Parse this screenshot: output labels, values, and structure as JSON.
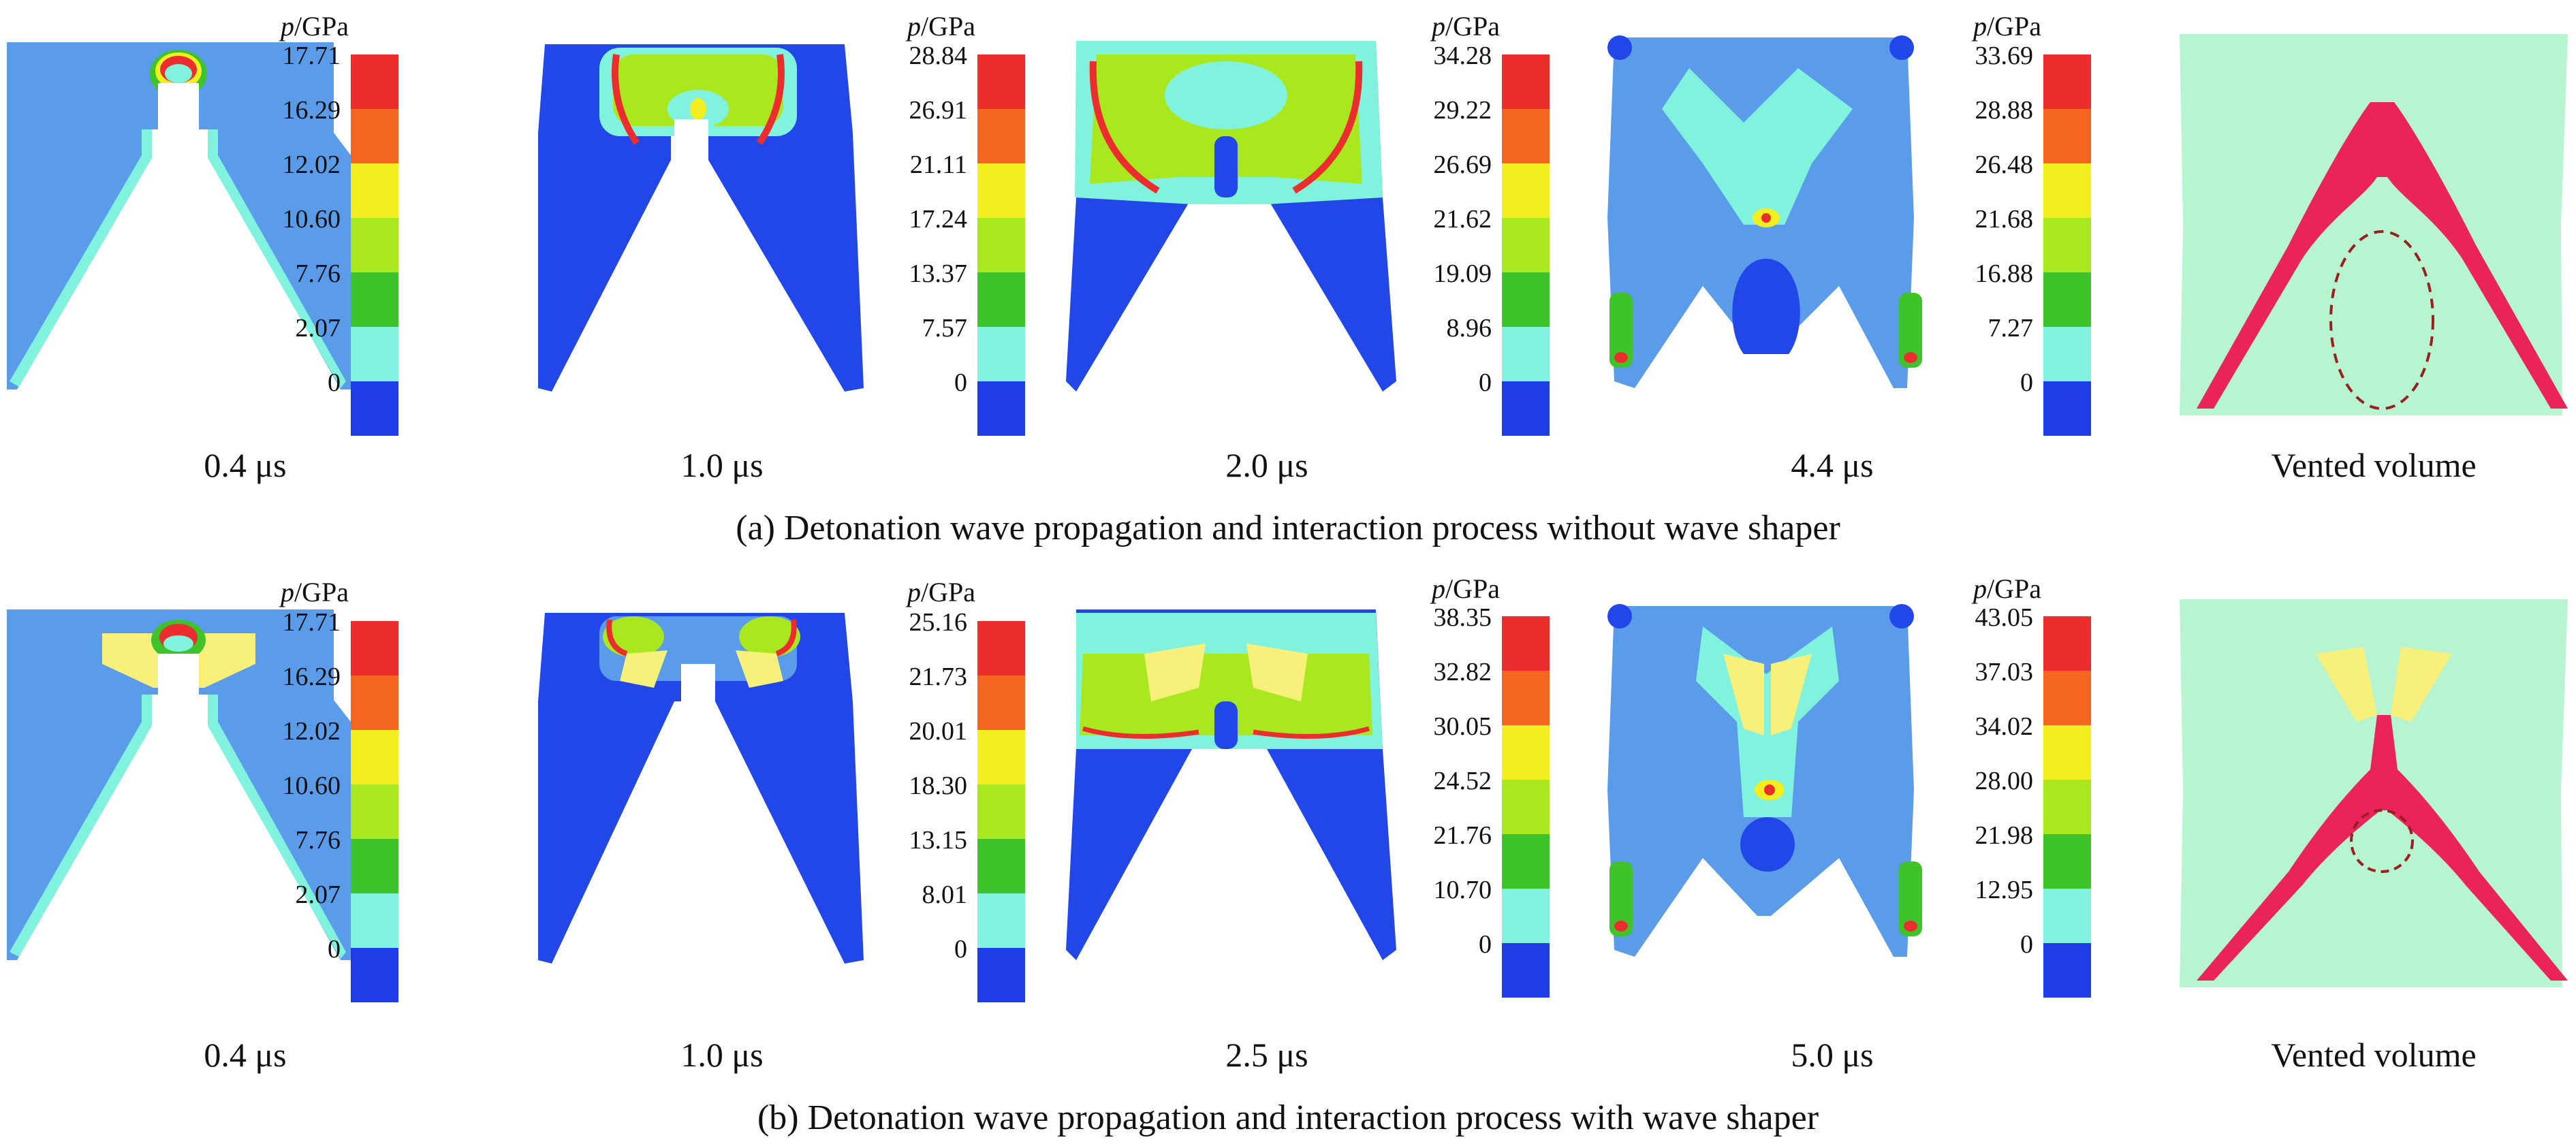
{
  "colors": {
    "level0": "#1f3de6",
    "level1": "#80f2dd",
    "level2": "#3fc32a",
    "level3": "#a9e81f",
    "level4": "#f2ee1f",
    "level5": "#f4661f",
    "level6": "#ec2d2d",
    "background_blue": "#5a9ce9",
    "dark_blue": "#2147e8",
    "vent_green": "#b6f5d0",
    "vent_red": "#ea245a",
    "vent_yellow": "#f7f07a",
    "dashed_circle": "#9b1f1f"
  },
  "unit_label": {
    "p": "p",
    "unit": "/GPa"
  },
  "rows": [
    {
      "caption": "(a) Detonation wave propagation and interaction process without wave shaper",
      "panels": [
        {
          "time": "0.4 μs",
          "scale": [
            "17.71",
            "16.29",
            "12.02",
            "10.60",
            "7.76",
            "2.07",
            "0"
          ]
        },
        {
          "time": "1.0 μs",
          "scale": [
            "28.84",
            "26.91",
            "21.11",
            "17.24",
            "13.37",
            "7.57",
            "0"
          ]
        },
        {
          "time": "2.0 μs",
          "scale": [
            "34.28",
            "29.22",
            "26.69",
            "21.62",
            "19.09",
            "8.96",
            "0"
          ]
        },
        {
          "time": "4.4 μs",
          "scale": [
            "33.69",
            "28.88",
            "26.48",
            "21.68",
            "16.88",
            "7.27",
            "0"
          ]
        }
      ],
      "vented_label": "Vented volume"
    },
    {
      "caption": "(b) Detonation wave propagation and interaction process with wave shaper",
      "panels": [
        {
          "time": "0.4 μs",
          "scale": [
            "17.71",
            "16.29",
            "12.02",
            "10.60",
            "7.76",
            "2.07",
            "0"
          ]
        },
        {
          "time": "1.0 μs",
          "scale": [
            "25.16",
            "21.73",
            "20.01",
            "18.30",
            "13.15",
            "8.01",
            "0"
          ]
        },
        {
          "time": "2.5 μs",
          "scale": [
            "38.35",
            "32.82",
            "30.05",
            "24.52",
            "21.76",
            "10.70",
            "0"
          ]
        },
        {
          "time": "5.0 μs",
          "scale": [
            "43.05",
            "37.03",
            "34.02",
            "28.00",
            "21.98",
            "12.95",
            "0"
          ]
        }
      ],
      "vented_label": "Vented volume"
    }
  ]
}
